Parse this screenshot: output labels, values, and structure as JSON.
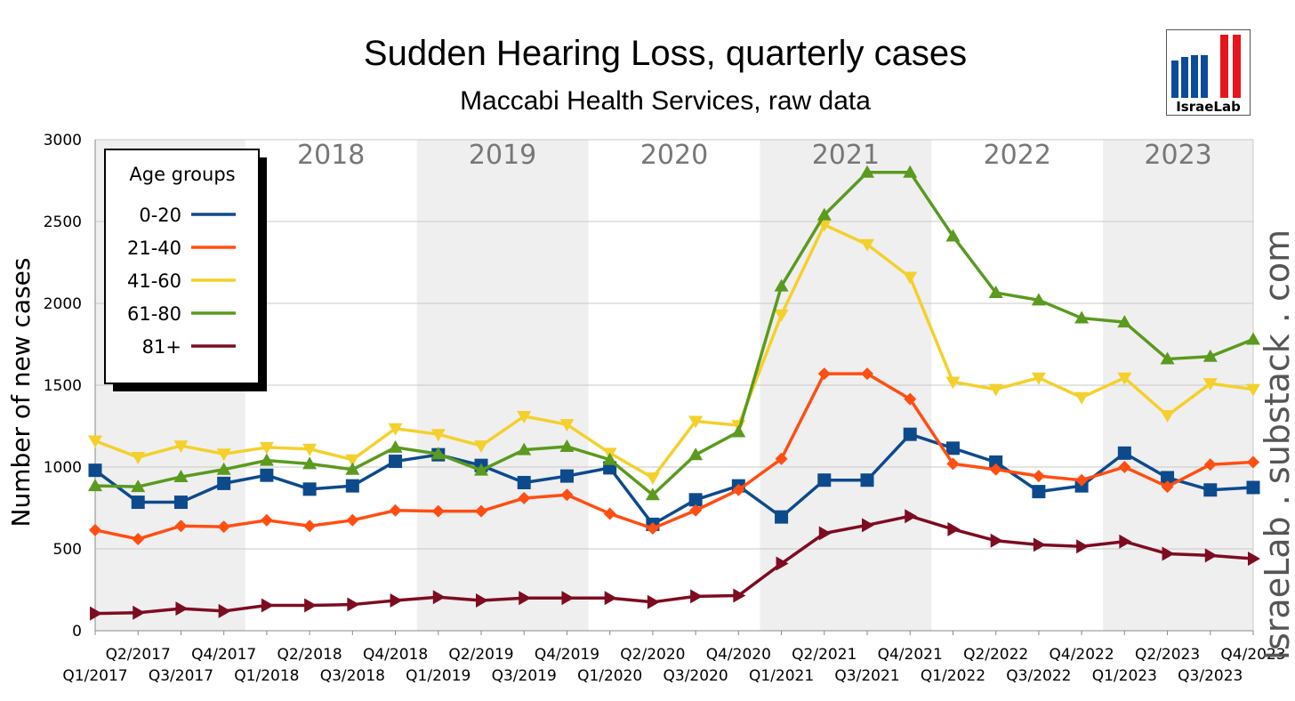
{
  "title": "Sudden Hearing Loss, quarterly cases",
  "subtitle": "Maccabi Health Services, raw data",
  "watermark": "IsraeLab . substack . com",
  "logo": {
    "text": "IsraeLab",
    "bar_colors": [
      "#0b4b9a",
      "#e8141b"
    ]
  },
  "year_bands": [
    "2018",
    "2019",
    "2020",
    "2021",
    "2022",
    "2023"
  ],
  "colors": {
    "band": "#efefef",
    "grid": "#c8c8c8",
    "year_label": "#777777"
  },
  "chart_data": {
    "type": "line",
    "title": "Sudden Hearing Loss, quarterly cases",
    "subtitle": "Maccabi Health Services, raw data",
    "ylabel": "Number of new cases",
    "xlabel": "",
    "ylim": [
      0,
      3000
    ],
    "yticks": [
      0,
      500,
      1000,
      1500,
      2000,
      2500,
      3000
    ],
    "grid": true,
    "legend": {
      "title": "Age groups",
      "placement": "top-left"
    },
    "categories": [
      "Q1/2017",
      "Q2/2017",
      "Q3/2017",
      "Q4/2017",
      "Q1/2018",
      "Q2/2018",
      "Q3/2018",
      "Q4/2018",
      "Q1/2019",
      "Q2/2019",
      "Q3/2019",
      "Q4/2019",
      "Q1/2020",
      "Q2/2020",
      "Q3/2020",
      "Q4/2020",
      "Q1/2021",
      "Q2/2021",
      "Q3/2021",
      "Q4/2021",
      "Q1/2022",
      "Q2/2022",
      "Q3/2022",
      "Q4/2022",
      "Q1/2023",
      "Q2/2023",
      "Q3/2023",
      "Q4/2023"
    ],
    "series": [
      {
        "name": "0-20",
        "color": "#0d4a8c",
        "marker": "square",
        "values": [
          980,
          785,
          785,
          900,
          950,
          865,
          885,
          1035,
          1075,
          1010,
          905,
          945,
          995,
          650,
          800,
          885,
          695,
          920,
          920,
          1200,
          1115,
          1030,
          850,
          885,
          1085,
          935,
          860,
          875
        ]
      },
      {
        "name": "21-40",
        "color": "#ff4e12",
        "marker": "diamond",
        "values": [
          615,
          560,
          640,
          635,
          675,
          640,
          675,
          735,
          730,
          730,
          810,
          830,
          715,
          625,
          735,
          860,
          1050,
          1570,
          1570,
          1415,
          1020,
          985,
          945,
          920,
          1000,
          880,
          1015,
          1030
        ]
      },
      {
        "name": "41-60",
        "color": "#f4d02c",
        "marker": "triangle-down",
        "values": [
          1160,
          1060,
          1130,
          1080,
          1120,
          1110,
          1045,
          1235,
          1200,
          1130,
          1310,
          1260,
          1085,
          935,
          1280,
          1255,
          1930,
          2480,
          2360,
          2160,
          1520,
          1475,
          1545,
          1425,
          1545,
          1315,
          1510,
          1475
        ]
      },
      {
        "name": "61-80",
        "color": "#5a9a1e",
        "marker": "triangle-up",
        "values": [
          885,
          880,
          940,
          985,
          1040,
          1020,
          985,
          1120,
          1080,
          980,
          1105,
          1125,
          1045,
          830,
          1075,
          1215,
          2105,
          2540,
          2800,
          2800,
          2410,
          2065,
          2020,
          1910,
          1885,
          1660,
          1675,
          1780
        ]
      },
      {
        "name": "81+",
        "color": "#7d0c21",
        "marker": "triangle-right",
        "values": [
          105,
          110,
          135,
          120,
          155,
          155,
          160,
          185,
          205,
          185,
          200,
          200,
          200,
          175,
          210,
          215,
          410,
          595,
          645,
          700,
          620,
          550,
          525,
          515,
          545,
          470,
          460,
          440
        ]
      }
    ]
  }
}
